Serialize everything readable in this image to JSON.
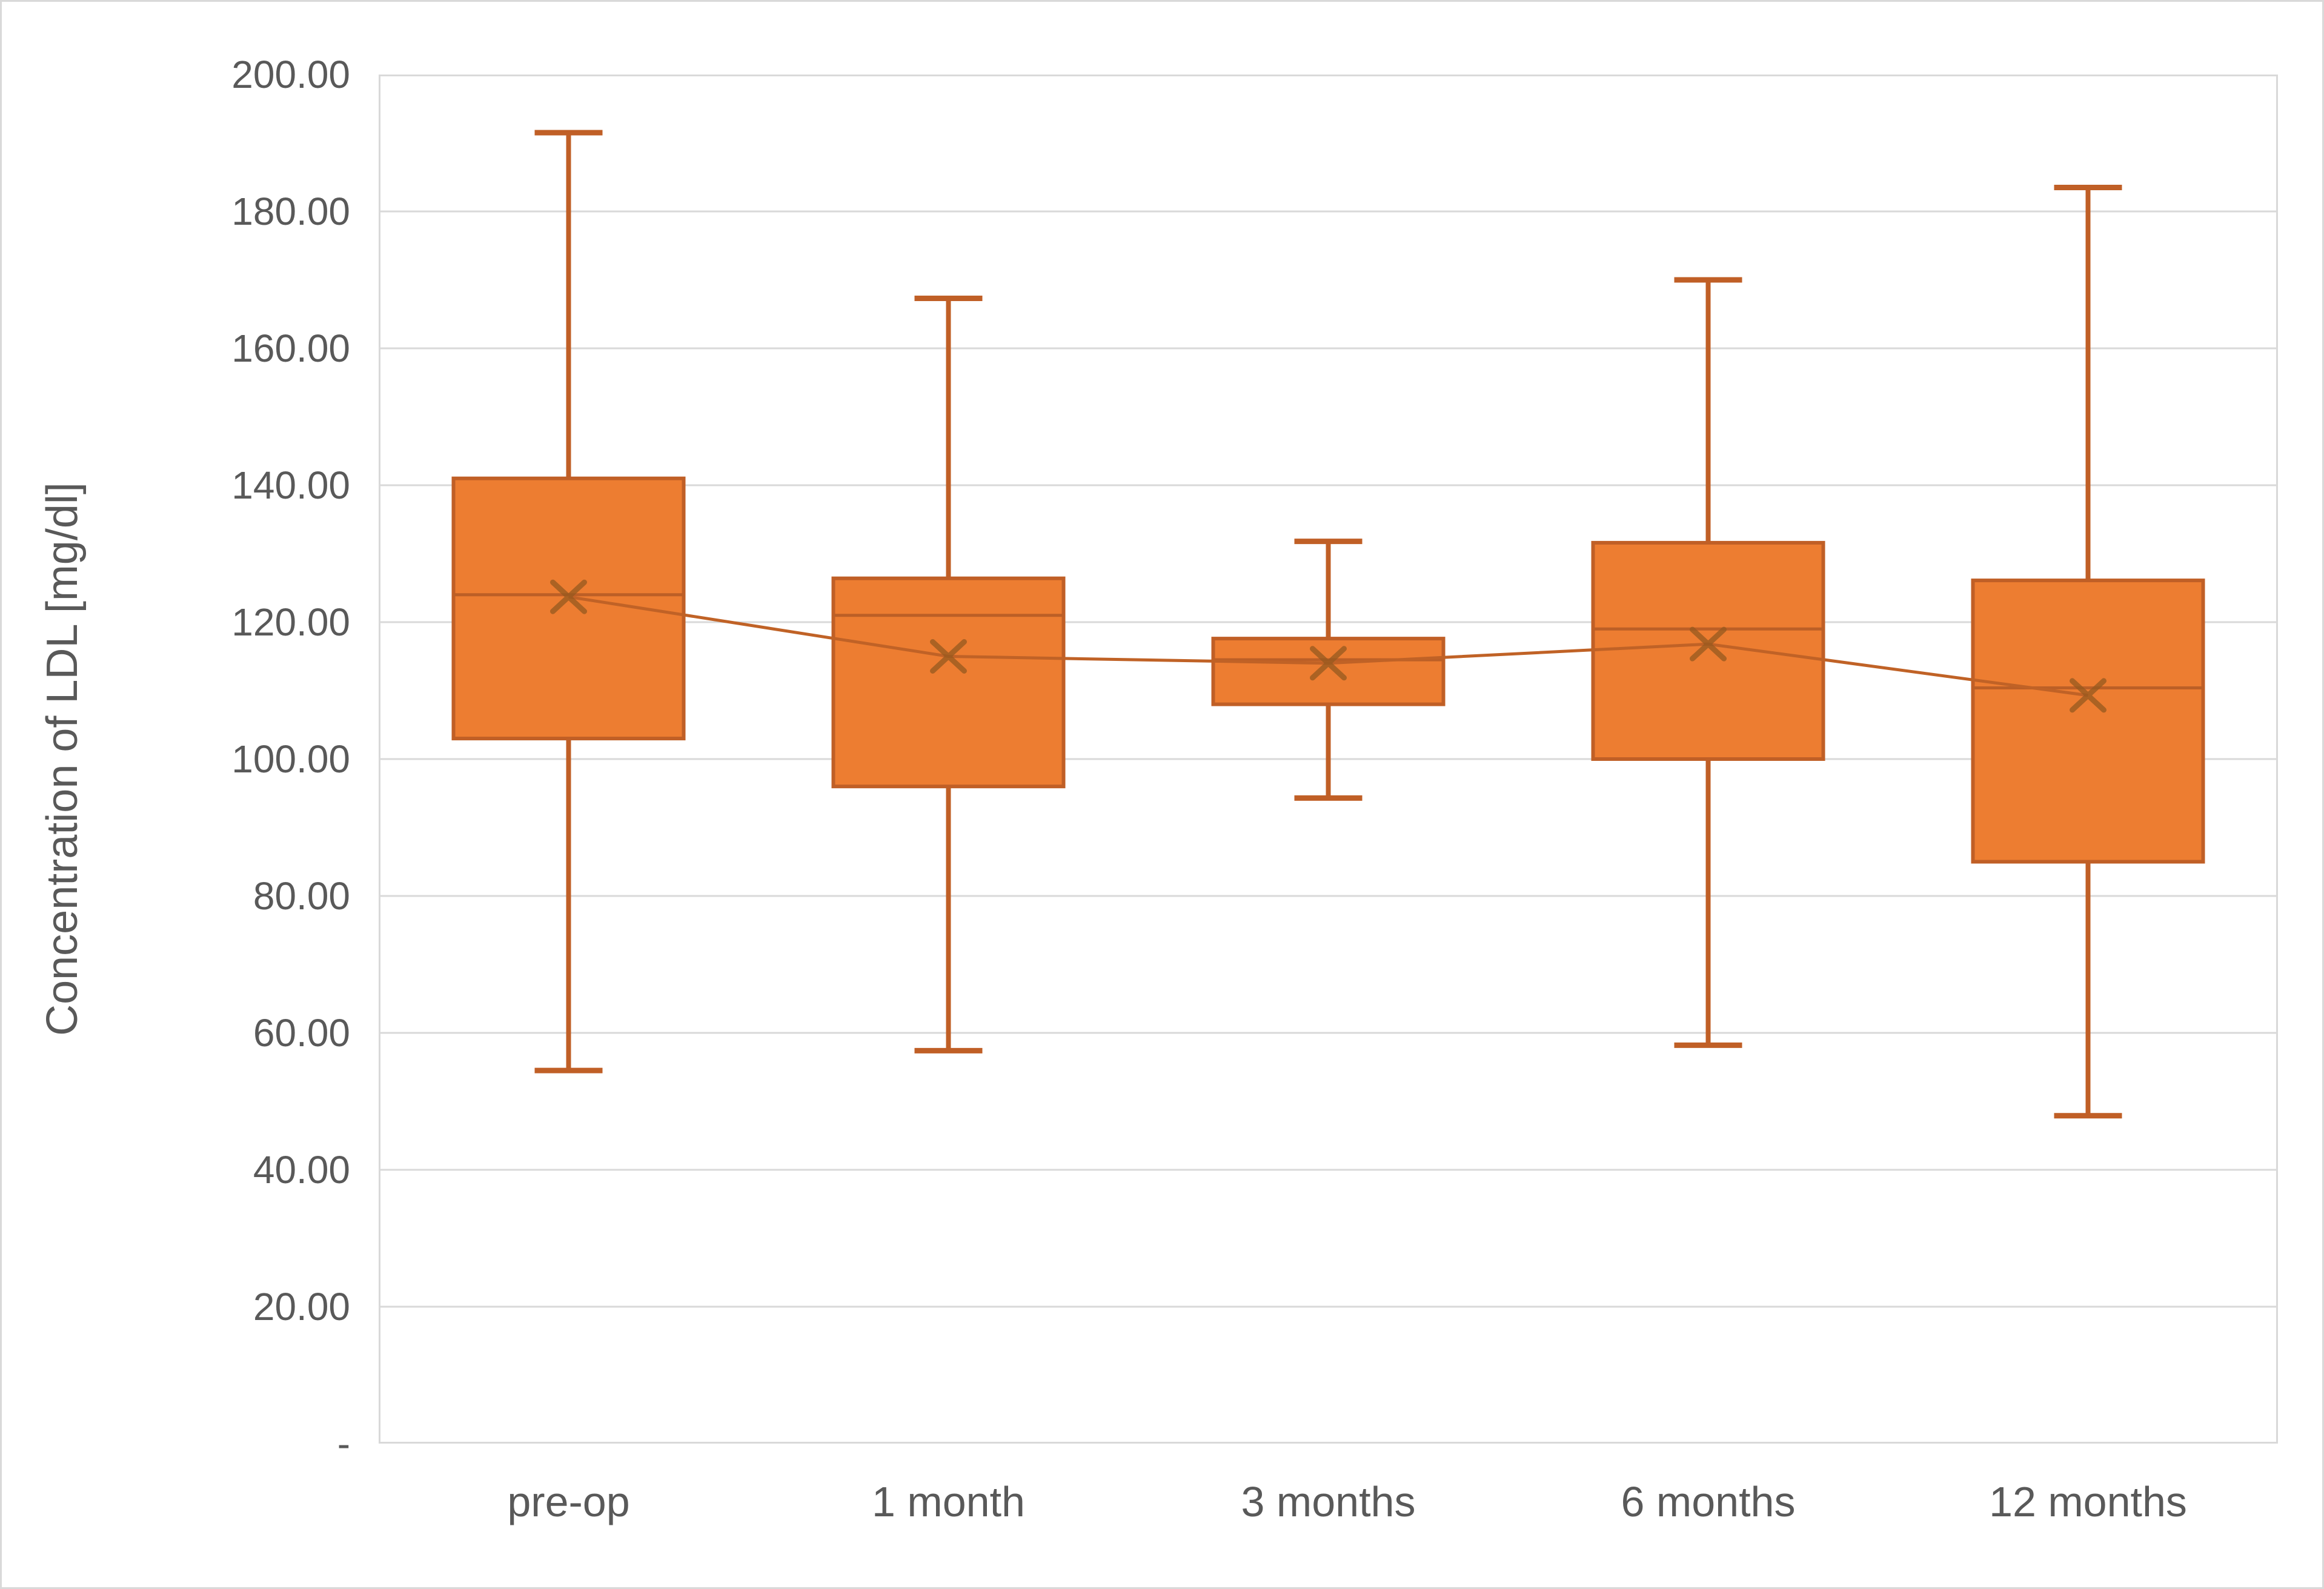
{
  "chart_data": {
    "type": "boxplot",
    "title": "",
    "ylabel": "Concentration of LDL [mg/dl]",
    "xlabel": "",
    "ylim": [
      0,
      200
    ],
    "ytick_step": 20,
    "grid": true,
    "legend": false,
    "mean_markers": true,
    "mean_line": true,
    "ytick_values": [
      200,
      180,
      160,
      140,
      120,
      100,
      80,
      60,
      40,
      20,
      0
    ],
    "ytick_labels": [
      "200.00",
      "180.00",
      "160.00",
      "140.00",
      "120.00",
      "100.00",
      "80.00",
      "60.00",
      "40.00",
      "20.00",
      "-"
    ],
    "categories": [
      "pre-op",
      "1 month",
      "3 months",
      "6 months",
      "12 months"
    ],
    "series": [
      {
        "name": "pre-op",
        "min": 54.5,
        "q1": 103,
        "median": 124.0,
        "q3": 141.0,
        "max": 191.5,
        "mean": 123.7
      },
      {
        "name": "1 month",
        "min": 57.4,
        "q1": 96,
        "median": 121.0,
        "q3": 126.4,
        "max": 167.3,
        "mean": 115.0
      },
      {
        "name": "3 months",
        "min": 94.3,
        "q1": 108,
        "median": 114.5,
        "q3": 117.6,
        "max": 131.8,
        "mean": 114.0
      },
      {
        "name": "6 months",
        "min": 58.2,
        "q1": 100,
        "median": 119.0,
        "q3": 131.6,
        "max": 170.0,
        "mean": 116.8
      },
      {
        "name": "12 months",
        "min": 47.9,
        "q1": 85,
        "median": 110.4,
        "q3": 126.1,
        "max": 183.5,
        "mean": 109.3
      }
    ]
  },
  "colors": {
    "background": "#ffffff",
    "chart_border": "#d9d9d9",
    "plot_border": "#d9d9d9",
    "gridline": "#d9d9d9",
    "text": "#595959",
    "box_fill": "#ed7d31",
    "box_border": "#c05f26",
    "whisker": "#c05f26",
    "median": "#bc5f26",
    "mean_line": "#c06226",
    "mean_marker": "#96591f"
  }
}
